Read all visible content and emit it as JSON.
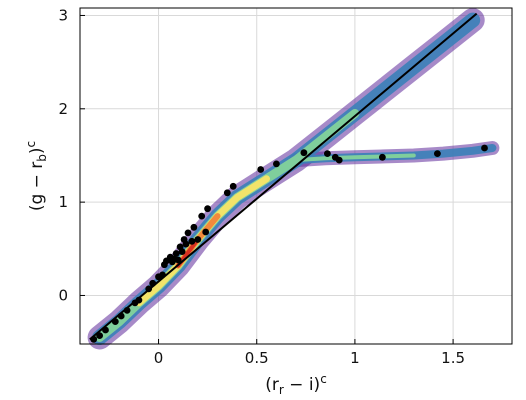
{
  "chart_data": {
    "type": "scatter",
    "title": "",
    "xlabel": "(r_r − i)^c",
    "ylabel": "(g − r_b)^c",
    "xlim": [
      -0.4,
      1.8
    ],
    "ylim": [
      -0.52,
      3.08
    ],
    "x_ticks": [
      {
        "value": 0,
        "label": "0"
      },
      {
        "value": 0.5,
        "label": "0.5"
      },
      {
        "value": 1,
        "label": "1"
      },
      {
        "value": 1.5,
        "label": "1.5"
      }
    ],
    "y_ticks": [
      {
        "value": 0,
        "label": "0"
      },
      {
        "value": 1,
        "label": "1"
      },
      {
        "value": 2,
        "label": "2"
      },
      {
        "value": 3,
        "label": "3"
      }
    ],
    "grid": true,
    "density": {
      "description_colormap": "spectral (purple low → red high)",
      "main_locus": [
        [
          -0.3,
          -0.45
        ],
        [
          -0.2,
          -0.28
        ],
        [
          -0.1,
          -0.08
        ],
        [
          0.0,
          0.1
        ],
        [
          0.1,
          0.32
        ],
        [
          0.2,
          0.6
        ],
        [
          0.3,
          0.85
        ],
        [
          0.4,
          1.05
        ],
        [
          0.55,
          1.25
        ],
        [
          0.7,
          1.45
        ],
        [
          0.85,
          1.7
        ],
        [
          1.0,
          1.95
        ],
        [
          1.15,
          2.2
        ],
        [
          1.3,
          2.45
        ],
        [
          1.45,
          2.7
        ],
        [
          1.6,
          2.95
        ]
      ],
      "m_dwarf_branch": [
        [
          0.7,
          1.45
        ],
        [
          0.85,
          1.47
        ],
        [
          1.0,
          1.48
        ],
        [
          1.15,
          1.49
        ],
        [
          1.3,
          1.5
        ],
        [
          1.45,
          1.52
        ],
        [
          1.6,
          1.55
        ],
        [
          1.7,
          1.58
        ]
      ],
      "colors": {
        "low": "#5e2a9a",
        "mid_low": "#3b7fb8",
        "mid": "#7fce9c",
        "mid_high": "#f2e36a",
        "high": "#f28a3c",
        "peak": "#d7301f"
      }
    },
    "line": {
      "x": [
        -0.35,
        1.62
      ],
      "y": [
        -0.47,
        3.02
      ],
      "color": "#000000"
    },
    "points": {
      "color": "#000000",
      "x": [
        -0.33,
        -0.3,
        -0.27,
        -0.22,
        -0.19,
        -0.16,
        -0.12,
        -0.1,
        -0.05,
        -0.03,
        0.0,
        0.02,
        0.03,
        0.04,
        0.06,
        0.07,
        0.08,
        0.09,
        0.1,
        0.11,
        0.12,
        0.13,
        0.14,
        0.15,
        0.17,
        0.18,
        0.2,
        0.22,
        0.24,
        0.25,
        0.35,
        0.38,
        0.52,
        0.6,
        0.74,
        0.86,
        0.9,
        0.92,
        1.14,
        1.42,
        1.66
      ],
      "y": [
        -0.47,
        -0.43,
        -0.37,
        -0.28,
        -0.22,
        -0.16,
        -0.08,
        -0.05,
        0.07,
        0.13,
        0.2,
        0.22,
        0.33,
        0.37,
        0.41,
        0.36,
        0.39,
        0.45,
        0.38,
        0.52,
        0.47,
        0.6,
        0.55,
        0.67,
        0.58,
        0.73,
        0.6,
        0.85,
        0.68,
        0.93,
        1.1,
        1.17,
        1.35,
        1.41,
        1.53,
        1.52,
        1.48,
        1.45,
        1.48,
        1.52,
        1.58
      ]
    }
  }
}
